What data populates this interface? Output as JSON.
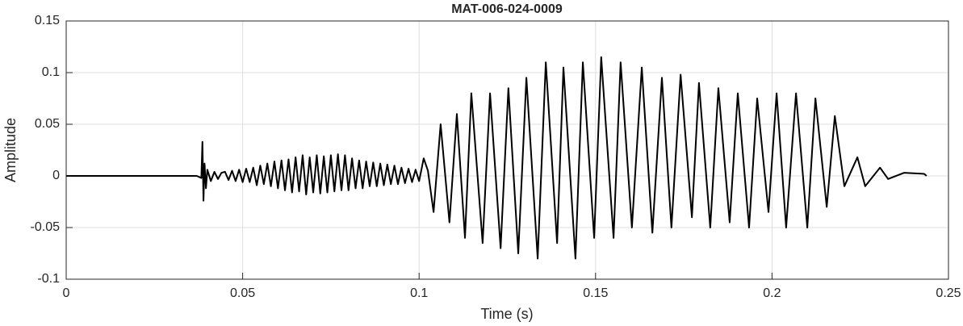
{
  "chart_data": {
    "type": "line",
    "title": "MAT-006-024-0009",
    "xlabel": "Time (s)",
    "ylabel": "Amplitude",
    "color": "#000000",
    "grid": true,
    "xlim": [
      0,
      0.25
    ],
    "ylim": [
      -0.1,
      0.15
    ],
    "xticks": [
      0,
      0.05,
      0.1,
      0.15,
      0.2,
      0.25
    ],
    "yticks": [
      -0.1,
      -0.05,
      0,
      0.05,
      0.1,
      0.15
    ],
    "x": [
      0,
      0.01,
      0.02,
      0.03,
      0.037,
      0.0383,
      0.0386,
      0.0389,
      0.0392,
      0.0396,
      0.04,
      0.041,
      0.042,
      0.043,
      0.044,
      0.045,
      0.046,
      0.047,
      0.048,
      0.049,
      0.05,
      0.051,
      0.052,
      0.053,
      0.054,
      0.055,
      0.056,
      0.057,
      0.058,
      0.059,
      0.06,
      0.061,
      0.062,
      0.063,
      0.064,
      0.065,
      0.066,
      0.067,
      0.068,
      0.069,
      0.07,
      0.071,
      0.072,
      0.073,
      0.074,
      0.075,
      0.076,
      0.077,
      0.078,
      0.079,
      0.08,
      0.081,
      0.082,
      0.083,
      0.084,
      0.085,
      0.086,
      0.087,
      0.088,
      0.089,
      0.09,
      0.091,
      0.092,
      0.093,
      0.094,
      0.095,
      0.096,
      0.097,
      0.098,
      0.099,
      0.1,
      0.1013,
      0.1025,
      0.1041,
      0.1061,
      0.1086,
      0.1107,
      0.113,
      0.1148,
      0.118,
      0.1201,
      0.1231,
      0.1253,
      0.1281,
      0.1304,
      0.1336,
      0.1359,
      0.1391,
      0.1409,
      0.1443,
      0.1464,
      0.1496,
      0.1516,
      0.1551,
      0.1571,
      0.1603,
      0.1631,
      0.1661,
      0.1688,
      0.1715,
      0.1741,
      0.1773,
      0.1793,
      0.1825,
      0.1848,
      0.188,
      0.1903,
      0.1935,
      0.1958,
      0.199,
      0.2013,
      0.204,
      0.2068,
      0.21,
      0.2123,
      0.2155,
      0.2178,
      0.2205,
      0.2242,
      0.2264,
      0.2306,
      0.2329,
      0.2374,
      0.2431,
      0.2438
    ],
    "values": [
      0,
      0,
      0,
      0,
      0,
      -0.002,
      0.033,
      -0.024,
      0.012,
      -0.012,
      0.006,
      -0.005,
      0.004,
      -0.003,
      0.003,
      0.004,
      -0.004,
      0.005,
      -0.005,
      0.006,
      -0.006,
      0.007,
      -0.006,
      0.008,
      -0.009,
      0.01,
      -0.008,
      0.012,
      -0.01,
      0.014,
      -0.012,
      0.015,
      -0.014,
      0.016,
      -0.016,
      0.018,
      -0.015,
      0.02,
      -0.018,
      0.018,
      -0.016,
      0.02,
      -0.017,
      0.019,
      -0.016,
      0.02,
      -0.015,
      0.021,
      -0.014,
      0.02,
      -0.014,
      0.017,
      -0.012,
      0.015,
      -0.012,
      0.014,
      -0.01,
      0.013,
      -0.01,
      0.012,
      -0.009,
      0.011,
      -0.008,
      0.01,
      -0.008,
      0.008,
      -0.007,
      0.007,
      -0.006,
      0.006,
      -0.005,
      0.017,
      0.005,
      -0.035,
      0.05,
      -0.045,
      0.06,
      -0.06,
      0.08,
      -0.065,
      0.08,
      -0.07,
      0.085,
      -0.075,
      0.095,
      -0.08,
      0.11,
      -0.065,
      0.105,
      -0.08,
      0.11,
      -0.06,
      0.115,
      -0.06,
      0.11,
      -0.05,
      0.105,
      -0.055,
      0.095,
      -0.05,
      0.098,
      -0.04,
      0.09,
      -0.05,
      0.085,
      -0.045,
      0.08,
      -0.05,
      0.075,
      -0.035,
      0.08,
      -0.05,
      0.08,
      -0.05,
      0.075,
      -0.03,
      0.058,
      -0.01,
      0.018,
      -0.01,
      0.008,
      -0.003,
      0.003,
      0.002,
      0
    ]
  }
}
